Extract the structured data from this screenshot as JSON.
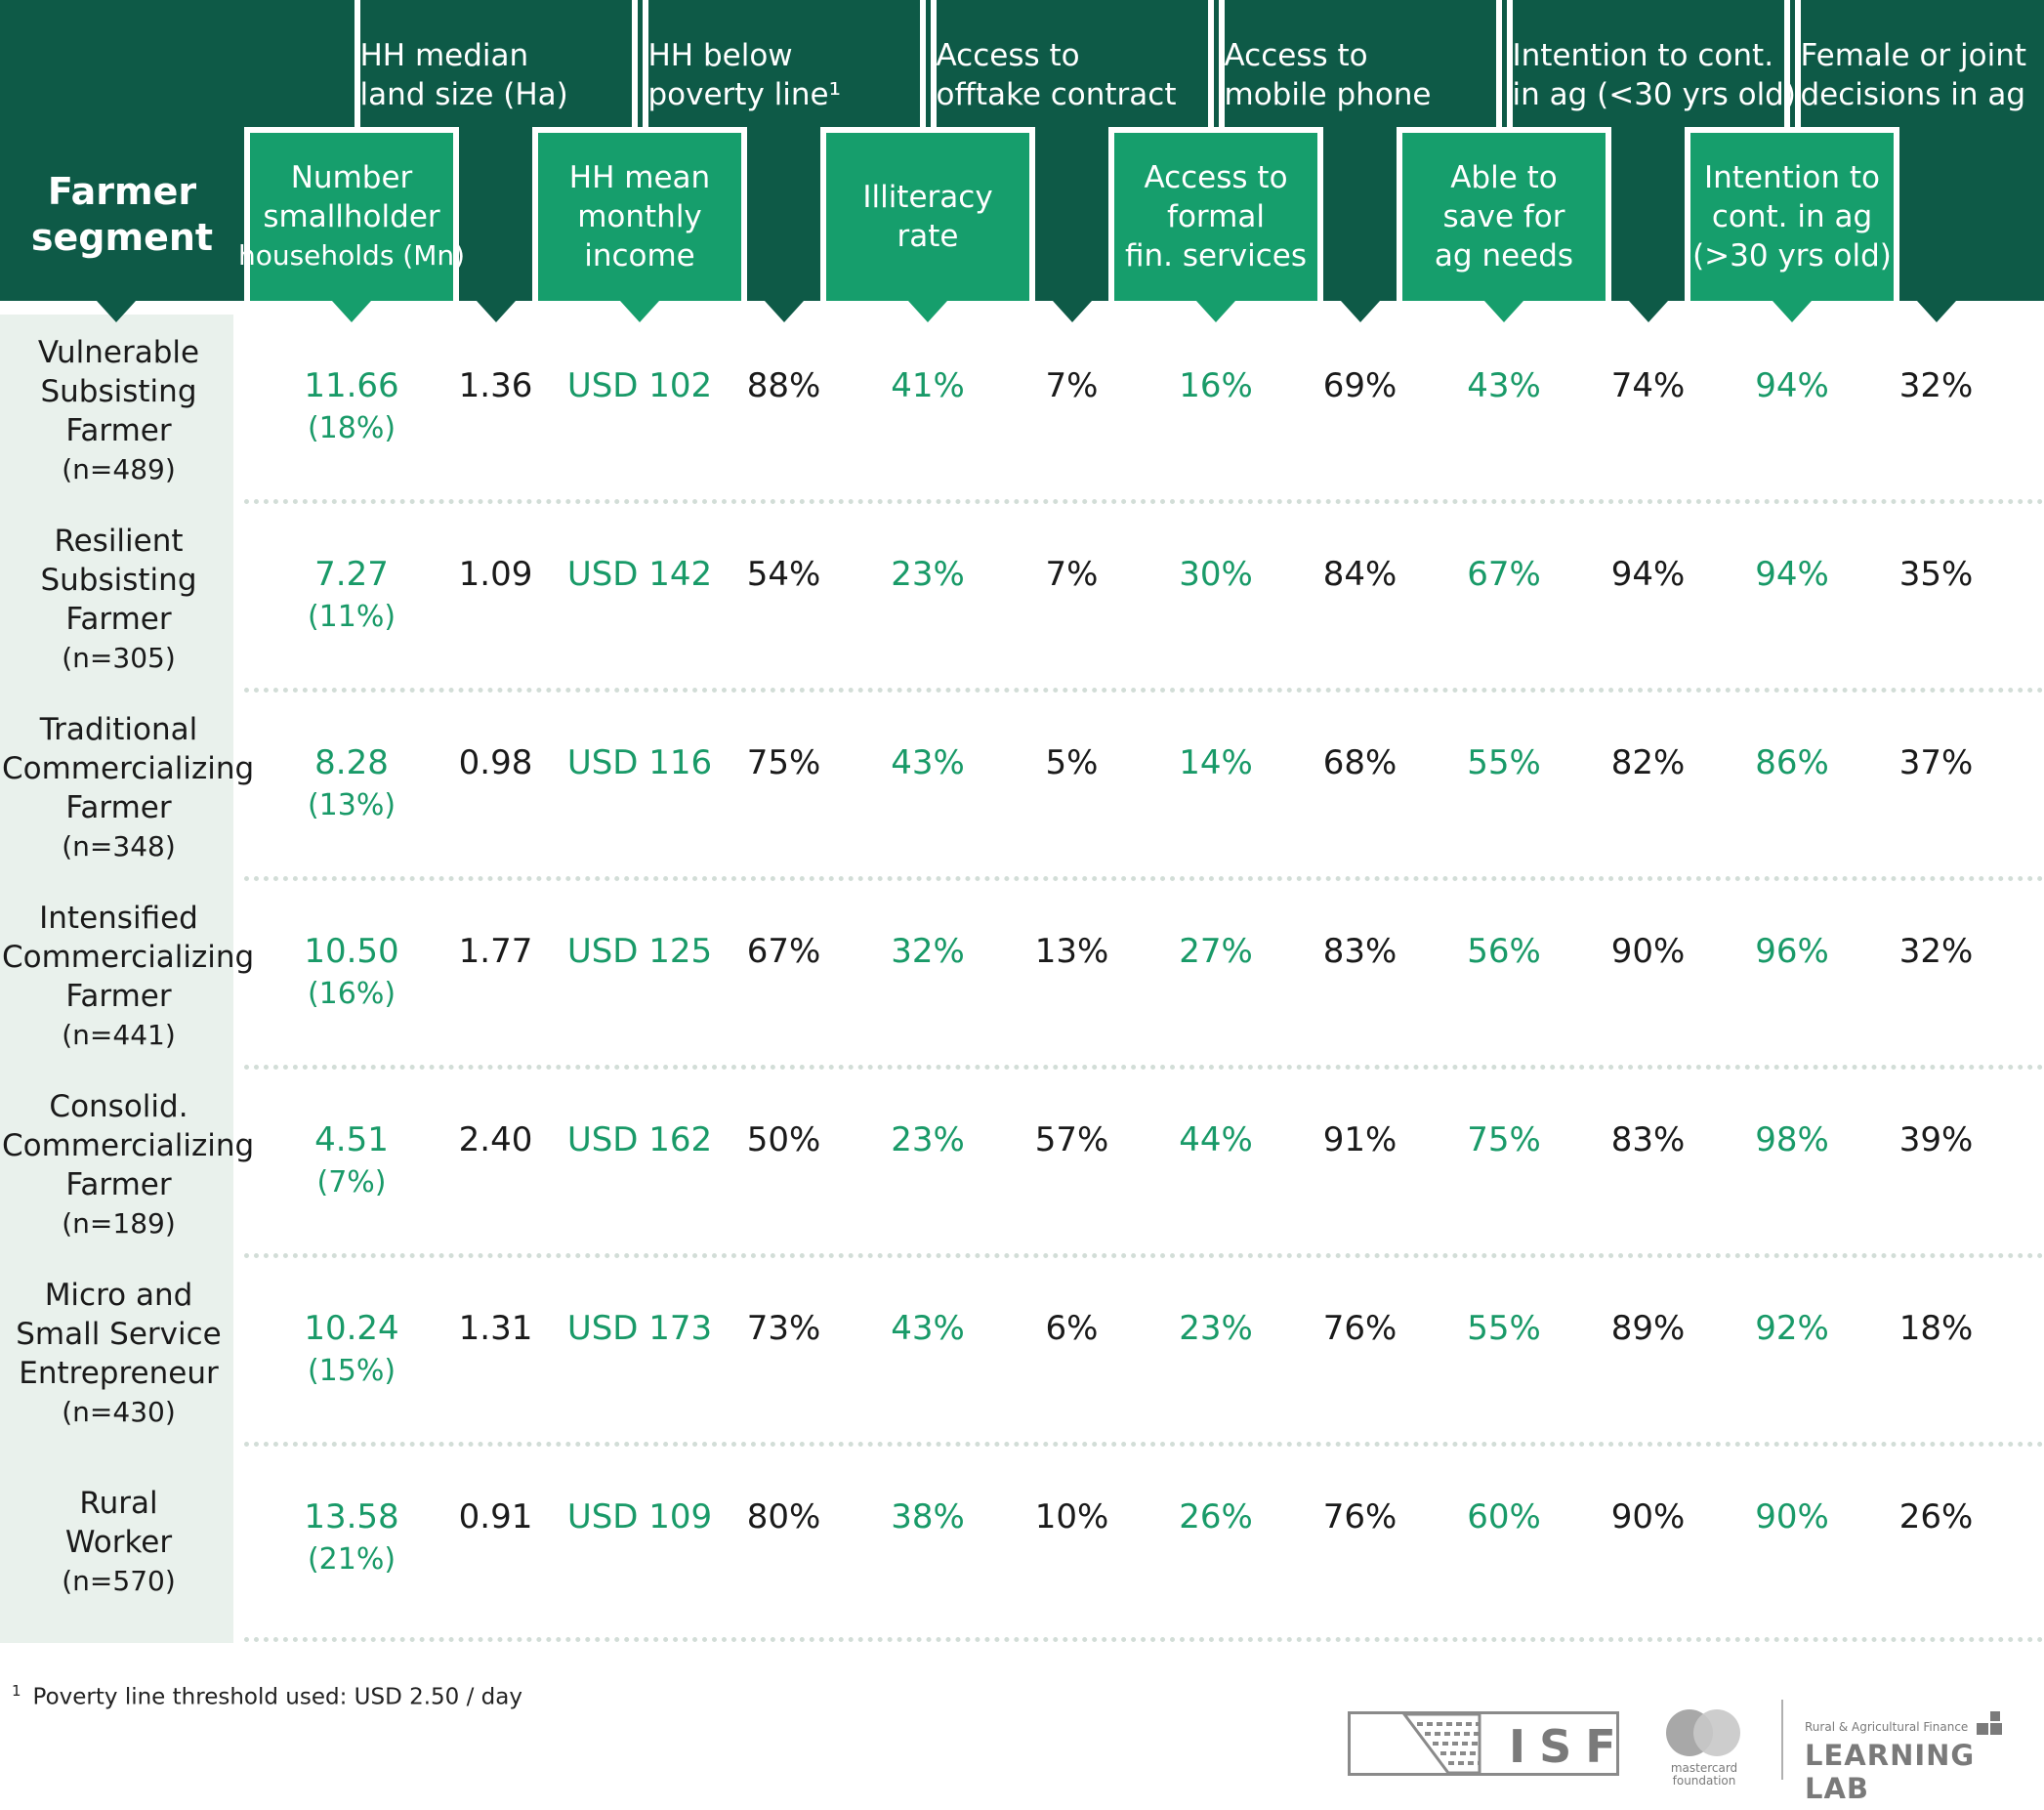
{
  "header": {
    "segment_title": "Farmer segment",
    "columns": [
      {
        "label": "Number smallholder households (Mn)",
        "lines": [
          "Number",
          "smallholder",
          "households (Mn)"
        ],
        "tier": "low",
        "value_color": "green"
      },
      {
        "label": "HH median land size (Ha)",
        "lines": [
          "HH median",
          "land size (Ha)"
        ],
        "tier": "high",
        "value_color": "dark"
      },
      {
        "label": "HH mean monthly income",
        "lines": [
          "HH mean",
          "monthly",
          "income"
        ],
        "tier": "low",
        "value_color": "green"
      },
      {
        "label": "HH below poverty line¹",
        "lines": [
          "HH below",
          "poverty line¹"
        ],
        "tier": "high",
        "value_color": "dark"
      },
      {
        "label": "Illiteracy rate",
        "lines": [
          "Illiteracy",
          "rate"
        ],
        "tier": "low",
        "value_color": "green"
      },
      {
        "label": "Access to offtake contract",
        "lines": [
          "Access to",
          "offtake contract"
        ],
        "tier": "high",
        "value_color": "dark"
      },
      {
        "label": "Access to formal fin. services",
        "lines": [
          "Access to",
          "formal",
          "fin. services"
        ],
        "tier": "low",
        "value_color": "green"
      },
      {
        "label": "Access to mobile phone",
        "lines": [
          "Access to",
          "mobile phone"
        ],
        "tier": "high",
        "value_color": "dark"
      },
      {
        "label": "Able to save for ag needs",
        "lines": [
          "Able to",
          "save for",
          "ag needs"
        ],
        "tier": "low",
        "value_color": "green"
      },
      {
        "label": "Intention to cont. in ag (<30 yrs old)",
        "lines": [
          "Intention to cont.",
          "in ag (<30 yrs old)"
        ],
        "tier": "high",
        "value_color": "dark"
      },
      {
        "label": "Intention to cont. in ag (>30 yrs old)",
        "lines": [
          "Intention to",
          "cont. in ag",
          "(>30 yrs old)"
        ],
        "tier": "low",
        "value_color": "green"
      },
      {
        "label": "Female or joint decisions in ag",
        "lines": [
          "Female or joint",
          "decisions in ag"
        ],
        "tier": "high",
        "value_color": "dark"
      }
    ]
  },
  "chart_data": {
    "type": "table",
    "title": "",
    "columns": [
      "Farmer segment",
      "Number smallholder households (Mn)",
      "HH median land size (Ha)",
      "HH mean monthly income",
      "HH below poverty line¹",
      "Illiteracy rate",
      "Access to offtake contract",
      "Access to formal fin. services",
      "Access to mobile phone",
      "Able to save for ag needs",
      "Intention to cont. in ag (<30 yrs old)",
      "Intention to cont. in ag (>30 yrs old)",
      "Female or joint decisions in ag"
    ],
    "rows": [
      {
        "segment": [
          "Vulnerable",
          "Subsisting",
          "Farmer"
        ],
        "n": "(n=489)",
        "households": "11.66",
        "share": "(18%)",
        "values": [
          "1.36",
          "USD 102",
          "88%",
          "41%",
          "7%",
          "16%",
          "69%",
          "43%",
          "74%",
          "94%",
          "32%"
        ]
      },
      {
        "segment": [
          "Resilient",
          "Subsisting",
          "Farmer"
        ],
        "n": "(n=305)",
        "households": "7.27",
        "share": "(11%)",
        "values": [
          "1.09",
          "USD 142",
          "54%",
          "23%",
          "7%",
          "30%",
          "84%",
          "67%",
          "94%",
          "94%",
          "35%"
        ]
      },
      {
        "segment": [
          "Traditional",
          "Commercializing",
          "Farmer"
        ],
        "n": "(n=348)",
        "households": "8.28",
        "share": "(13%)",
        "values": [
          "0.98",
          "USD 116",
          "75%",
          "43%",
          "5%",
          "14%",
          "68%",
          "55%",
          "82%",
          "86%",
          "37%"
        ]
      },
      {
        "segment": [
          "Intensified",
          "Commercializing",
          "Farmer"
        ],
        "n": "(n=441)",
        "households": "10.50",
        "share": "(16%)",
        "values": [
          "1.77",
          "USD 125",
          "67%",
          "32%",
          "13%",
          "27%",
          "83%",
          "56%",
          "90%",
          "96%",
          "32%"
        ]
      },
      {
        "segment": [
          "Consolid.",
          "Commercializing",
          "Farmer"
        ],
        "n": "(n=189)",
        "households": "4.51",
        "share": "(7%)",
        "values": [
          "2.40",
          "USD 162",
          "50%",
          "23%",
          "57%",
          "44%",
          "91%",
          "75%",
          "83%",
          "98%",
          "39%"
        ]
      },
      {
        "segment": [
          "Micro and",
          "Small Service",
          "Entrepreneur"
        ],
        "n": "(n=430)",
        "households": "10.24",
        "share": "(15%)",
        "values": [
          "1.31",
          "USD 173",
          "73%",
          "43%",
          "6%",
          "23%",
          "76%",
          "55%",
          "89%",
          "92%",
          "18%"
        ]
      },
      {
        "segment": [
          "Rural",
          "Worker"
        ],
        "n": "(n=570)",
        "households": "13.58",
        "share": "(21%)",
        "values": [
          "0.91",
          "USD 109",
          "80%",
          "38%",
          "10%",
          "26%",
          "76%",
          "60%",
          "90%",
          "90%",
          "26%"
        ]
      }
    ]
  },
  "footnote": {
    "mark": "1",
    "text": "Poverty line threshold used: USD 2.50 / day"
  },
  "logos": {
    "isf": "ISF",
    "mastercard": [
      "mastercard",
      "foundation"
    ],
    "learning_lab_small": "Rural & Agricultural Finance",
    "learning_lab_big": "LEARNING LAB"
  },
  "colors": {
    "dark_green": "#0e5a47",
    "bright_green": "#169e6c",
    "value_green": "#199a68",
    "segment_bg": "#e9f1ec"
  }
}
